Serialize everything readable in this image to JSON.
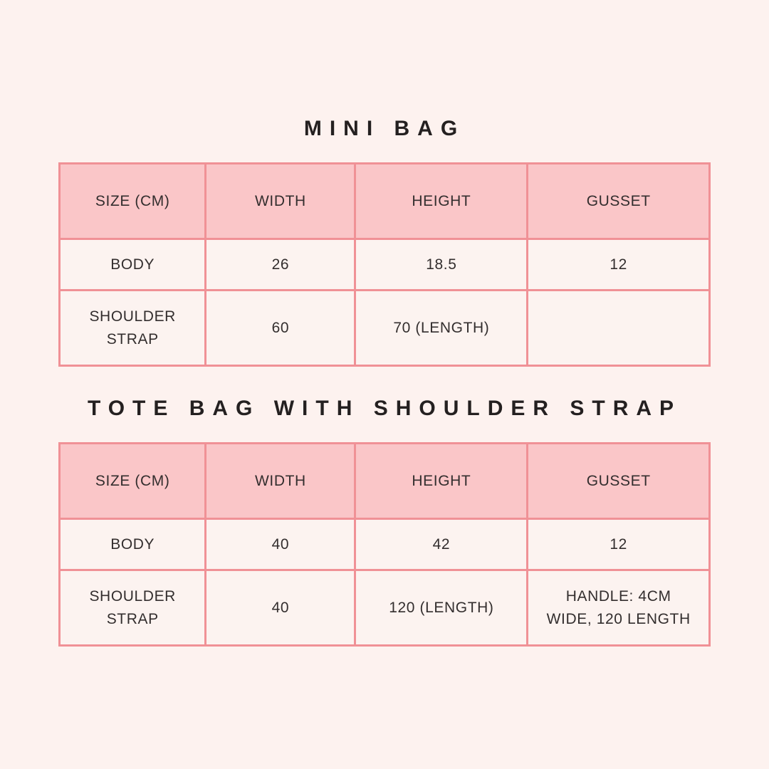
{
  "page": {
    "background": "#fdf2ef"
  },
  "colors": {
    "header_fill": "#fac6c8",
    "border": "#f09196",
    "cell_fill": "#fcf3f0",
    "title_text": "#242020",
    "cell_text": "#332e2e"
  },
  "chart_data": [
    {
      "type": "table",
      "title": "MINI BAG",
      "columns": [
        "SIZE (CM)",
        "WIDTH",
        "HEIGHT",
        "GUSSET"
      ],
      "rows": [
        [
          "BODY",
          "26",
          "18.5",
          "12"
        ],
        [
          "SHOULDER STRAP",
          "60",
          "70 (LENGTH)",
          ""
        ]
      ]
    },
    {
      "type": "table",
      "title": "TOTE BAG WITH SHOULDER STRAP",
      "columns": [
        "SIZE (CM)",
        "WIDTH",
        "HEIGHT",
        "GUSSET"
      ],
      "rows": [
        [
          "BODY",
          "40",
          "42",
          "12"
        ],
        [
          "SHOULDER STRAP",
          "40",
          "120 (LENGTH)",
          "HANDLE: 4CM WIDE, 120 LENGTH"
        ]
      ]
    }
  ],
  "tables": [
    {
      "title": "MINI BAG",
      "columns": [
        "SIZE (CM)",
        "WIDTH",
        "HEIGHT",
        "GUSSET"
      ],
      "rows": [
        [
          "BODY",
          "26",
          "18.5",
          "12"
        ],
        [
          "SHOULDER\nSTRAP",
          "60",
          "70 (LENGTH)",
          ""
        ]
      ]
    },
    {
      "title": "TOTE BAG WITH SHOULDER STRAP",
      "columns": [
        "SIZE (CM)",
        "WIDTH",
        "HEIGHT",
        "GUSSET"
      ],
      "rows": [
        [
          "BODY",
          "40",
          "42",
          "12"
        ],
        [
          "SHOULDER\nSTRAP",
          "40",
          "120 (LENGTH)",
          "HANDLE: 4CM\nWIDE, 120 LENGTH"
        ]
      ]
    }
  ]
}
